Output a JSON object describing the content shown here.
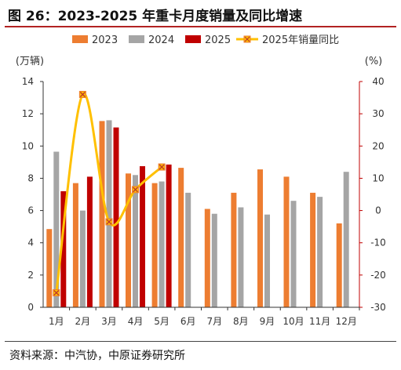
{
  "page": {
    "title": "图 26：2023-2025 年重卡月度销量及同比增速",
    "source": "资料来源：中汽协，中原证券研究所"
  },
  "colors": {
    "series_2023": "#ed7d31",
    "series_2024": "#a5a5a5",
    "series_2025": "#c00000",
    "series_yoy": "#ffc000",
    "yoy_marker": "#ed7d31",
    "title_rule": "#b22222",
    "right_axis": "#c00000"
  },
  "chart_data": {
    "type": "bar",
    "categories": [
      "1月",
      "2月",
      "3月",
      "4月",
      "5月",
      "6月",
      "7月",
      "8月",
      "9月",
      "10月",
      "11月",
      "12月"
    ],
    "series": [
      {
        "name": "2023",
        "type": "bar",
        "axis": "left",
        "values": [
          4.85,
          7.7,
          11.55,
          8.3,
          7.7,
          8.65,
          6.1,
          7.1,
          8.55,
          8.1,
          7.1,
          5.2
        ]
      },
      {
        "name": "2024",
        "type": "bar",
        "axis": "left",
        "values": [
          9.65,
          6.0,
          11.6,
          8.2,
          7.8,
          7.1,
          5.8,
          6.2,
          5.75,
          6.6,
          6.85,
          8.4
        ]
      },
      {
        "name": "2025",
        "type": "bar",
        "axis": "left",
        "values": [
          7.2,
          8.1,
          11.15,
          8.75,
          8.85,
          null,
          null,
          null,
          null,
          null,
          null,
          null
        ]
      },
      {
        "name": "2025年销量同比",
        "type": "line",
        "axis": "right",
        "values": [
          -25.5,
          36.0,
          -3.5,
          6.5,
          13.5,
          null,
          null,
          null,
          null,
          null,
          null,
          null
        ]
      }
    ],
    "y_left": {
      "unit": "(万辆)",
      "min": 0,
      "max": 14,
      "ticks": [
        "0",
        "2",
        "4",
        "6",
        "8",
        "10",
        "12",
        "14"
      ]
    },
    "y_right": {
      "unit": "(%)",
      "min": -30,
      "max": 40,
      "ticks": [
        "-30",
        "-20",
        "-10",
        "0",
        "10",
        "20",
        "30",
        "40"
      ]
    },
    "legend": [
      "2023",
      "2024",
      "2025",
      "2025年销量同比"
    ],
    "legend_position": "top",
    "grid": false
  }
}
